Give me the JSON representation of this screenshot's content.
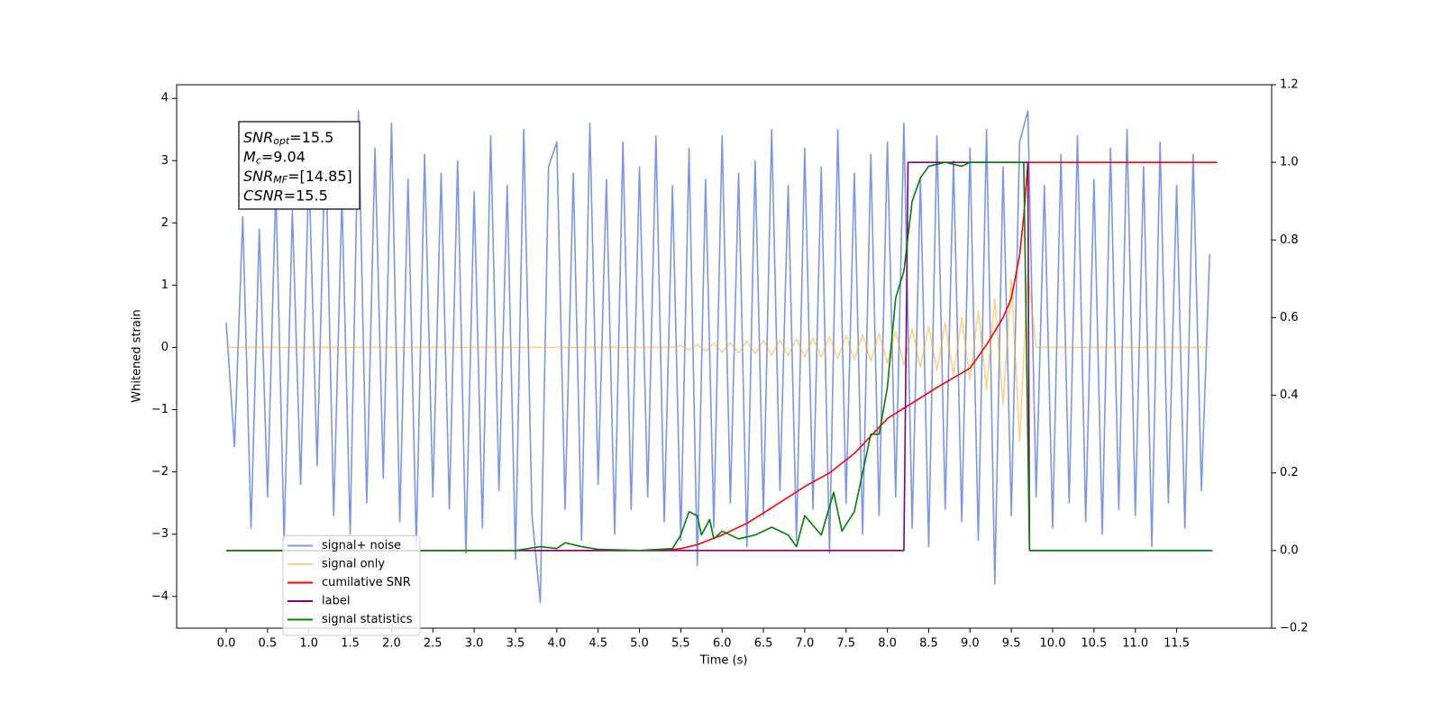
{
  "chart_data": {
    "type": "line",
    "xlabel": "Time (s)",
    "ylabel": "Whitened strain",
    "xlim": [
      -0.6,
      12.65
    ],
    "ylim": [
      -4.51,
      4.22
    ],
    "y2lim": [
      -0.2,
      1.2
    ],
    "xticks": [
      {
        "value": 0,
        "label": "0.0"
      },
      0.5,
      {
        "value": 1,
        "label": "1.0"
      },
      1.5,
      {
        "value": 2,
        "label": "2.0"
      },
      2.5,
      {
        "value": 3,
        "label": "3.0"
      },
      3.5,
      {
        "value": 4,
        "label": "4.0"
      },
      4.5,
      {
        "value": 5,
        "label": "5.0"
      },
      5.5,
      {
        "value": 6,
        "label": "6.0"
      },
      6.5,
      {
        "value": 7,
        "label": "7.0"
      },
      7.5,
      {
        "value": 8,
        "label": "8.0"
      },
      8.5,
      {
        "value": 9,
        "label": "9.0"
      },
      9.5,
      {
        "value": 10,
        "label": "10.0"
      },
      10.5,
      {
        "value": 11,
        "label": "11.0"
      },
      11.5
    ],
    "yticks": [
      {
        "value": -4,
        "label": "−4"
      },
      {
        "value": -3,
        "label": "−3"
      },
      {
        "value": -2,
        "label": "−2"
      },
      {
        "value": -1,
        "label": "−1"
      },
      0,
      1,
      2,
      3,
      4
    ],
    "y2ticks": [
      {
        "value": -0.2,
        "label": "−0.2"
      },
      {
        "value": 0,
        "label": "0.0"
      },
      0.2,
      0.4,
      0.6,
      0.8,
      {
        "value": 1,
        "label": "1.0"
      },
      1.2
    ],
    "legend": "lower left",
    "annotations": [
      {
        "symbol": "SNR",
        "subscript": "opt",
        "text": "=15.5"
      },
      {
        "symbol": "M",
        "subscript": "c",
        "text": "=9.04"
      },
      {
        "symbol": "SNR",
        "subscript": "MF",
        "text": "=[14.85]"
      },
      {
        "symbol": "CSNR",
        "text": "=15.5"
      }
    ],
    "series": [
      {
        "name": "signal+ noise",
        "color": "#4169e1",
        "alpha": 0.7,
        "x": [
          0,
          0.1,
          0.2,
          0.3,
          0.4,
          0.5,
          0.6,
          0.7,
          0.8,
          0.9,
          1,
          1.1,
          1.2,
          1.3,
          1.4,
          1.5,
          1.6,
          1.7,
          1.8,
          1.9,
          2,
          2.1,
          2.2,
          2.3,
          2.4,
          2.5,
          2.6,
          2.7,
          2.8,
          2.9,
          3,
          3.1,
          3.2,
          3.3,
          3.4,
          3.5,
          3.6,
          3.7,
          3.8,
          3.9,
          4,
          4.1,
          4.2,
          4.3,
          4.4,
          4.5,
          4.6,
          4.7,
          4.8,
          4.9,
          5,
          5.1,
          5.2,
          5.3,
          5.4,
          5.5,
          5.6,
          5.7,
          5.8,
          5.9,
          6,
          6.1,
          6.2,
          6.3,
          6.4,
          6.5,
          6.6,
          6.7,
          6.8,
          6.9,
          7,
          7.1,
          7.2,
          7.3,
          7.4,
          7.5,
          7.6,
          7.7,
          7.8,
          7.9,
          8,
          8.1,
          8.2,
          8.3,
          8.4,
          8.5,
          8.6,
          8.7,
          8.8,
          8.9,
          9,
          9.1,
          9.2,
          9.3,
          9.4,
          9.5,
          9.6,
          9.7,
          9.8,
          9.9,
          10,
          10.1,
          10.2,
          10.3,
          10.4,
          10.5,
          10.6,
          10.7,
          10.8,
          10.9,
          11,
          11.1,
          11.2,
          11.3,
          11.4,
          11.5,
          11.6,
          11.7,
          11.8,
          11.9
        ],
        "values": [
          0.4,
          -1.6,
          2.1,
          -2.9,
          1.9,
          -2.4,
          2.6,
          -3.1,
          2.2,
          -2.2,
          2.9,
          -1.9,
          3.4,
          -2.7,
          2.4,
          -3.0,
          3.8,
          -2.5,
          3.2,
          -2.1,
          3.6,
          -2.8,
          2.7,
          -3.2,
          3.1,
          -2.4,
          2.8,
          -2.6,
          3.0,
          -3.3,
          2.5,
          -2.9,
          3.4,
          -2.3,
          2.6,
          -3.4,
          3.5,
          -2.7,
          -4.1,
          2.9,
          3.3,
          -2.6,
          2.8,
          -3.1,
          3.6,
          -2.2,
          2.7,
          -3.0,
          3.3,
          -2.6,
          2.9,
          -2.4,
          3.4,
          -2.8,
          2.6,
          -3.1,
          3.2,
          -3.5,
          2.7,
          -2.9,
          3.4,
          -2.5,
          2.8,
          -3.2,
          3.0,
          -2.7,
          3.5,
          -2.3,
          2.6,
          -3.1,
          3.2,
          -2.6,
          2.9,
          -3.3,
          3.5,
          -2.5,
          2.8,
          -3.0,
          3.1,
          -2.7,
          3.3,
          -2.4,
          3.6,
          -2.9,
          2.7,
          -3.2,
          3.4,
          -2.6,
          3.0,
          -2.8,
          3.2,
          -3.1,
          3.5,
          -3.8,
          2.9,
          -2.7,
          3.3,
          3.8,
          -2.4,
          2.6,
          -2.9,
          3.1,
          -2.5,
          3.4,
          -2.8,
          2.7,
          -3.0,
          3.2,
          -2.6,
          3.5,
          -2.7,
          2.9,
          -3.2,
          3.3,
          -2.5,
          2.6,
          -2.9,
          3.1,
          -2.3,
          1.5
        ]
      },
      {
        "name": "signal only",
        "color": "#ffa500",
        "alpha": 0.5,
        "x": [
          0,
          0.1,
          0.2,
          0.3,
          0.4,
          0.5,
          0.6,
          0.7,
          0.8,
          0.9,
          1,
          1.1,
          1.2,
          1.3,
          1.4,
          1.5,
          1.6,
          1.7,
          1.8,
          1.9,
          2,
          2.1,
          2.2,
          2.3,
          2.4,
          2.5,
          2.6,
          2.7,
          2.8,
          2.9,
          3,
          3.1,
          3.2,
          3.3,
          3.4,
          3.5,
          3.6,
          3.7,
          3.8,
          3.9,
          4,
          4.1,
          4.2,
          4.3,
          4.4,
          4.5,
          4.6,
          4.7,
          4.8,
          4.9,
          5,
          5.1,
          5.2,
          5.3,
          5.4,
          5.5,
          5.6,
          5.7,
          5.8,
          5.9,
          6,
          6.1,
          6.2,
          6.3,
          6.4,
          6.5,
          6.6,
          6.7,
          6.8,
          6.9,
          7,
          7.1,
          7.2,
          7.3,
          7.4,
          7.5,
          7.6,
          7.7,
          7.8,
          7.9,
          8,
          8.1,
          8.2,
          8.3,
          8.4,
          8.5,
          8.6,
          8.7,
          8.8,
          8.9,
          9,
          9.1,
          9.2,
          9.3,
          9.4,
          9.5,
          9.6,
          9.7,
          9.8,
          9.9,
          10,
          10.1,
          10.2,
          10.3,
          10.4,
          10.5,
          10.6,
          10.7,
          10.8,
          10.9,
          11,
          11.1,
          11.2,
          11.3,
          11.4,
          11.5,
          11.6,
          11.7,
          11.8,
          11.9
        ],
        "values": [
          0,
          0,
          0,
          0,
          0,
          0,
          0,
          0,
          0,
          0,
          0,
          0,
          0,
          0,
          0,
          0,
          0,
          0,
          0,
          0,
          0,
          0,
          0,
          0,
          0,
          0,
          0,
          0,
          0,
          0,
          0,
          0,
          0,
          0,
          0,
          0,
          0,
          0,
          0,
          0,
          0,
          0,
          0,
          0,
          0,
          0,
          0,
          0,
          0,
          0,
          0,
          0,
          0,
          0,
          0,
          0.03,
          -0.04,
          0.05,
          -0.06,
          0.07,
          -0.08,
          0.08,
          -0.09,
          0.1,
          -0.1,
          0.11,
          -0.12,
          0.12,
          -0.13,
          0.14,
          -0.15,
          0.15,
          -0.16,
          0.17,
          -0.18,
          0.19,
          -0.2,
          0.21,
          -0.22,
          0.23,
          -0.25,
          0.26,
          -0.28,
          0.3,
          -0.32,
          0.34,
          -0.37,
          0.4,
          -0.44,
          0.48,
          -0.53,
          0.6,
          -0.68,
          0.78,
          -0.92,
          1.1,
          -1.5,
          1.2,
          0,
          0,
          0,
          0,
          0,
          0,
          0,
          0,
          0,
          0,
          0,
          0,
          0,
          0,
          0,
          0,
          0,
          0,
          0,
          0,
          0,
          0
        ]
      },
      {
        "name": "cumilative SNR",
        "color": "#ff0000",
        "axis": "y2",
        "x": [
          0,
          5.3,
          5.5,
          5.7,
          6.0,
          6.3,
          6.6,
          7.0,
          7.3,
          7.6,
          8.0,
          8.3,
          8.6,
          9.0,
          9.2,
          9.4,
          9.5,
          9.6,
          9.65,
          9.7,
          11.99
        ],
        "values": [
          0,
          0,
          0.005,
          0.015,
          0.04,
          0.07,
          0.11,
          0.165,
          0.2,
          0.25,
          0.34,
          0.38,
          0.42,
          0.47,
          0.53,
          0.6,
          0.65,
          0.76,
          0.86,
          1.0,
          1.0
        ]
      },
      {
        "name": "label",
        "color": "#800080",
        "axis": "y2",
        "x": [
          0,
          8.2,
          8.25,
          9.7,
          9.72,
          11.93
        ],
        "values": [
          0,
          0,
          1,
          1,
          0,
          0
        ]
      },
      {
        "name": "signal statistics",
        "color": "#008000",
        "axis": "y2",
        "x": [
          0,
          3.5,
          3.8,
          4.0,
          4.1,
          4.3,
          4.5,
          5.0,
          5.4,
          5.5,
          5.6,
          5.7,
          5.75,
          5.85,
          5.9,
          6.0,
          6.2,
          6.4,
          6.6,
          6.8,
          6.9,
          7.0,
          7.2,
          7.35,
          7.45,
          7.6,
          7.7,
          7.8,
          7.9,
          8.0,
          8.1,
          8.2,
          8.3,
          8.4,
          8.5,
          8.7,
          8.9,
          9.0,
          9.65,
          9.72,
          11.93
        ],
        "values": [
          0,
          0,
          0.01,
          0.005,
          0.02,
          0.01,
          0.003,
          0,
          0.005,
          0.04,
          0.1,
          0.09,
          0.04,
          0.08,
          0.03,
          0.05,
          0.03,
          0.04,
          0.06,
          0.04,
          0.01,
          0.09,
          0.04,
          0.15,
          0.05,
          0.1,
          0.2,
          0.3,
          0.3,
          0.42,
          0.65,
          0.72,
          0.9,
          0.96,
          0.99,
          1.0,
          0.99,
          1.0,
          1.0,
          0,
          0
        ]
      }
    ]
  }
}
